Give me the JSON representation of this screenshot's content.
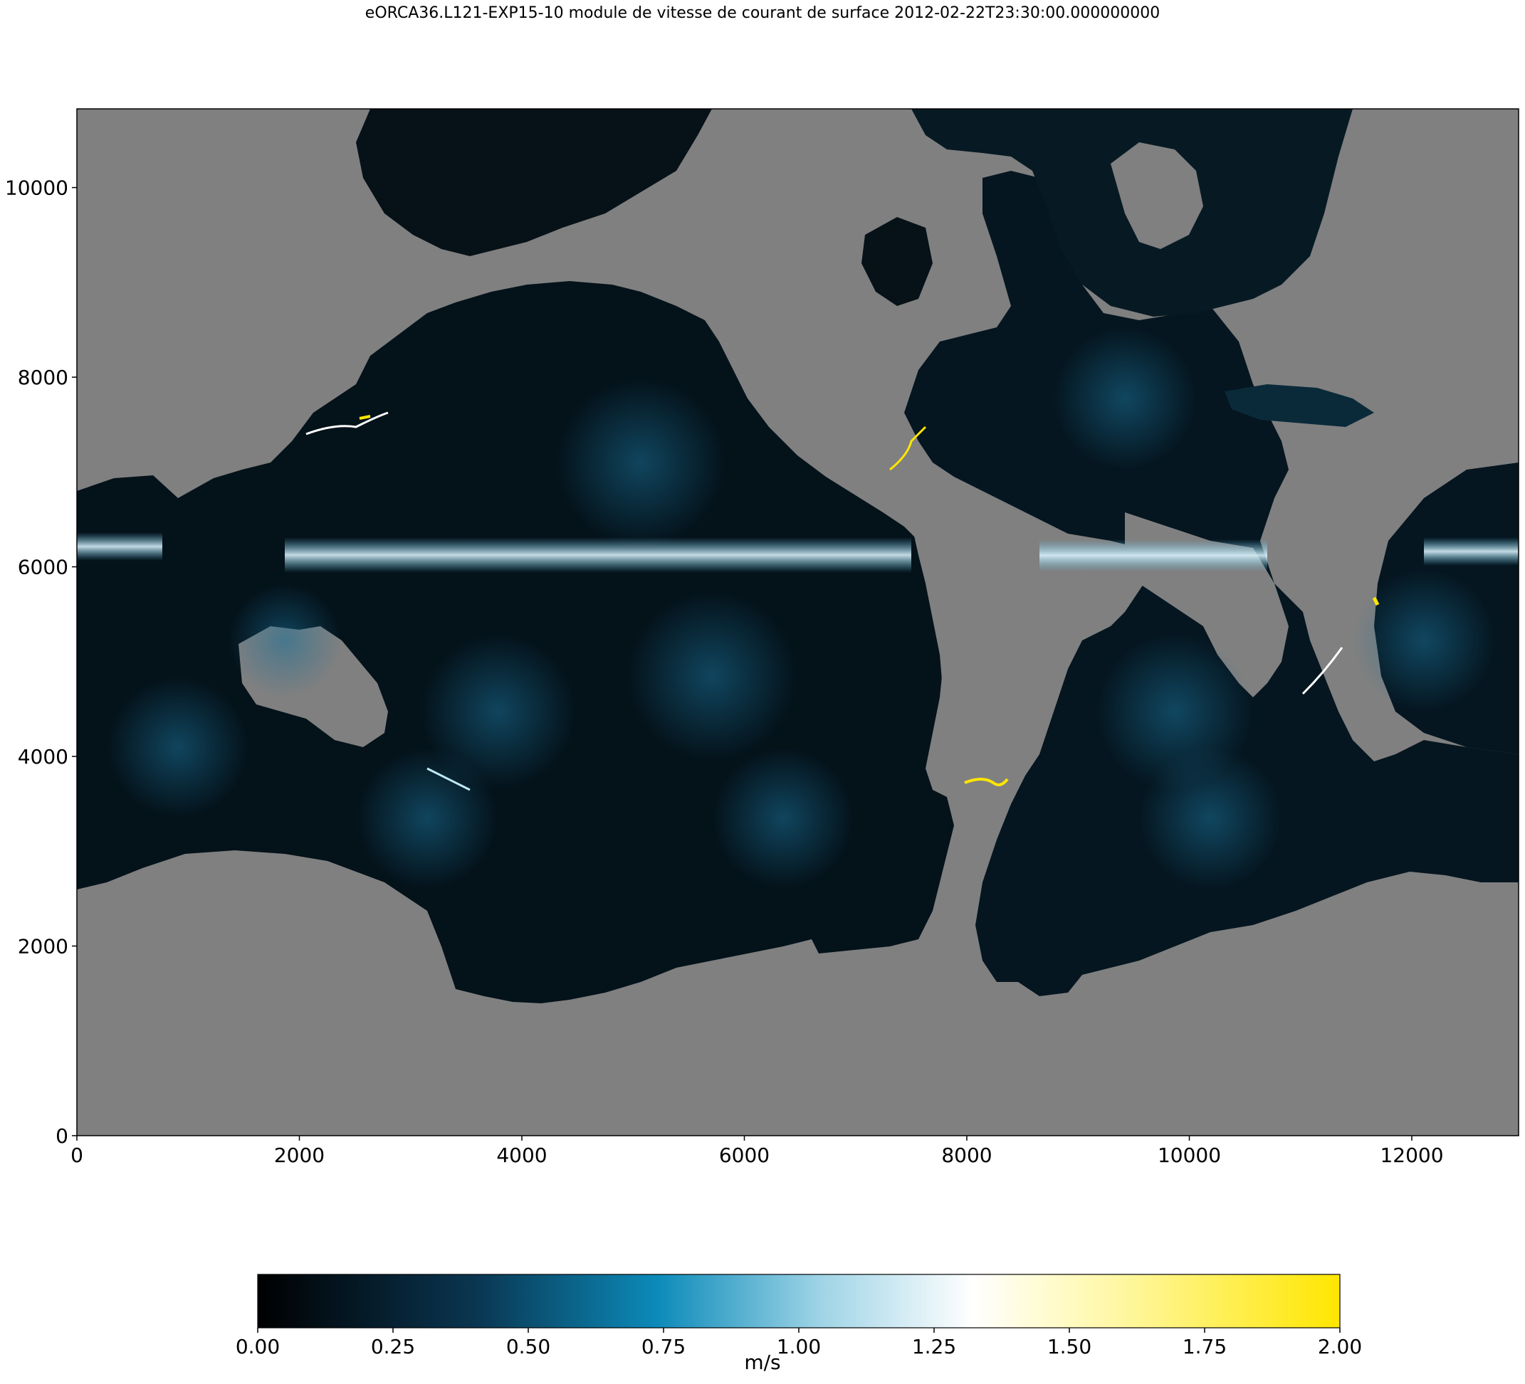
{
  "title": "eORCA36.L121-EXP15-10 module de vitesse de courant de surface 2012-02-22T23:30:00.000000000",
  "colors": {
    "land": "#808080",
    "ocean_dark": "#04121a",
    "colormap": [
      "#000000",
      "#0a3550",
      "#0c8bba",
      "#9fd4e6",
      "#ffffff",
      "#fff7a0",
      "#ffe600"
    ]
  },
  "map": {
    "x_axis": {
      "ticks": [
        0,
        2000,
        4000,
        6000,
        8000,
        10000,
        12000
      ],
      "range": [
        0,
        12960
      ]
    },
    "y_axis": {
      "ticks": [
        0,
        2000,
        4000,
        6000,
        8000,
        10000
      ],
      "range": [
        0,
        10830
      ]
    }
  },
  "colorbar": {
    "label": "m/s",
    "ticks": [
      "0.00",
      "0.25",
      "0.50",
      "0.75",
      "1.00",
      "1.25",
      "1.50",
      "1.75",
      "2.00"
    ],
    "range": [
      0,
      2
    ]
  }
}
